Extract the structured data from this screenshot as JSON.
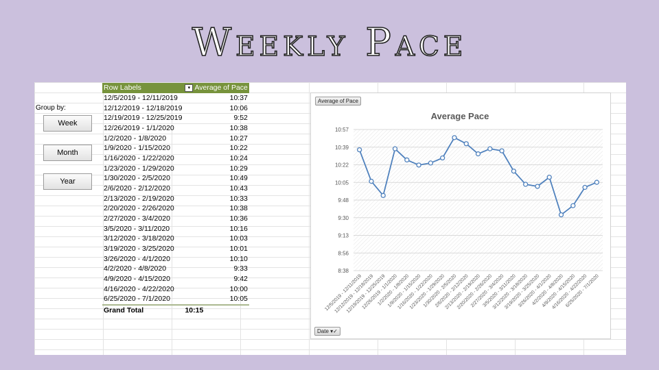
{
  "title": "Weekly Pace",
  "slicer": {
    "label": "Group by:",
    "buttons": [
      "Week",
      "Month",
      "Year"
    ]
  },
  "pivot": {
    "header_row_labels": "Row Labels",
    "header_value": "Average of Pace",
    "rows": [
      {
        "label": "12/5/2019 - 12/11/2019",
        "value": "10:37"
      },
      {
        "label": "12/12/2019 - 12/18/2019",
        "value": "10:06"
      },
      {
        "label": "12/19/2019 - 12/25/2019",
        "value": "9:52"
      },
      {
        "label": "12/26/2019 - 1/1/2020",
        "value": "10:38"
      },
      {
        "label": "1/2/2020 - 1/8/2020",
        "value": "10:27"
      },
      {
        "label": "1/9/2020 - 1/15/2020",
        "value": "10:22"
      },
      {
        "label": "1/16/2020 - 1/22/2020",
        "value": "10:24"
      },
      {
        "label": "1/23/2020 - 1/29/2020",
        "value": "10:29"
      },
      {
        "label": "1/30/2020 - 2/5/2020",
        "value": "10:49"
      },
      {
        "label": "2/6/2020 - 2/12/2020",
        "value": "10:43"
      },
      {
        "label": "2/13/2020 - 2/19/2020",
        "value": "10:33"
      },
      {
        "label": "2/20/2020 - 2/26/2020",
        "value": "10:38"
      },
      {
        "label": "2/27/2020 - 3/4/2020",
        "value": "10:36"
      },
      {
        "label": "3/5/2020 - 3/11/2020",
        "value": "10:16"
      },
      {
        "label": "3/12/2020 - 3/18/2020",
        "value": "10:03"
      },
      {
        "label": "3/19/2020 - 3/25/2020",
        "value": "10:01"
      },
      {
        "label": "3/26/2020 - 4/1/2020",
        "value": "10:10"
      },
      {
        "label": "4/2/2020 - 4/8/2020",
        "value": "9:33"
      },
      {
        "label": "4/9/2020 - 4/15/2020",
        "value": "9:42"
      },
      {
        "label": "4/16/2020 - 4/22/2020",
        "value": "10:00"
      },
      {
        "label": "6/25/2020 - 7/1/2020",
        "value": "10:05"
      }
    ],
    "grand_total_label": "Grand Total",
    "grand_total_value": "10:15"
  },
  "chart_buttons": {
    "value_field": "Average of Pace",
    "axis_field": "Date"
  },
  "colors": {
    "background": "#cbc0dd",
    "pivot_header": "#77933c",
    "line": "#4f81bd"
  },
  "chart_data": {
    "type": "line",
    "title": "Average Pace",
    "categories": [
      "12/5/2019 - 12/11/2019",
      "12/12/2019 - 12/18/2019",
      "12/19/2019 - 12/25/2019",
      "12/26/2019 - 1/1/2020",
      "1/2/2020 - 1/8/2020",
      "1/9/2020 - 1/15/2020",
      "1/16/2020 - 1/22/2020",
      "1/23/2020 - 1/29/2020",
      "1/30/2020 - 2/5/2020",
      "2/6/2020 - 2/12/2020",
      "2/13/2020 - 2/19/2020",
      "2/20/2020 - 2/26/2020",
      "2/27/2020 - 3/4/2020",
      "3/5/2020 - 3/11/2020",
      "3/12/2020 - 3/18/2020",
      "3/19/2020 - 3/25/2020",
      "3/26/2020 - 4/1/2020",
      "4/2/2020 - 4/8/2020",
      "4/9/2020 - 4/15/2020",
      "4/16/2020 - 4/22/2020",
      "6/25/2020 - 7/1/2020"
    ],
    "values_seconds": [
      637,
      606,
      592,
      638,
      627,
      622,
      624,
      629,
      649,
      643,
      633,
      638,
      636,
      616,
      603,
      601,
      610,
      573,
      582,
      600,
      605
    ],
    "y_ticks": [
      "10:57",
      "10:39",
      "10:22",
      "10:05",
      "9:48",
      "9:30",
      "9:13",
      "8:56",
      "8:38"
    ],
    "ylim_seconds": [
      518,
      657
    ],
    "grid": true,
    "legend": "none"
  }
}
